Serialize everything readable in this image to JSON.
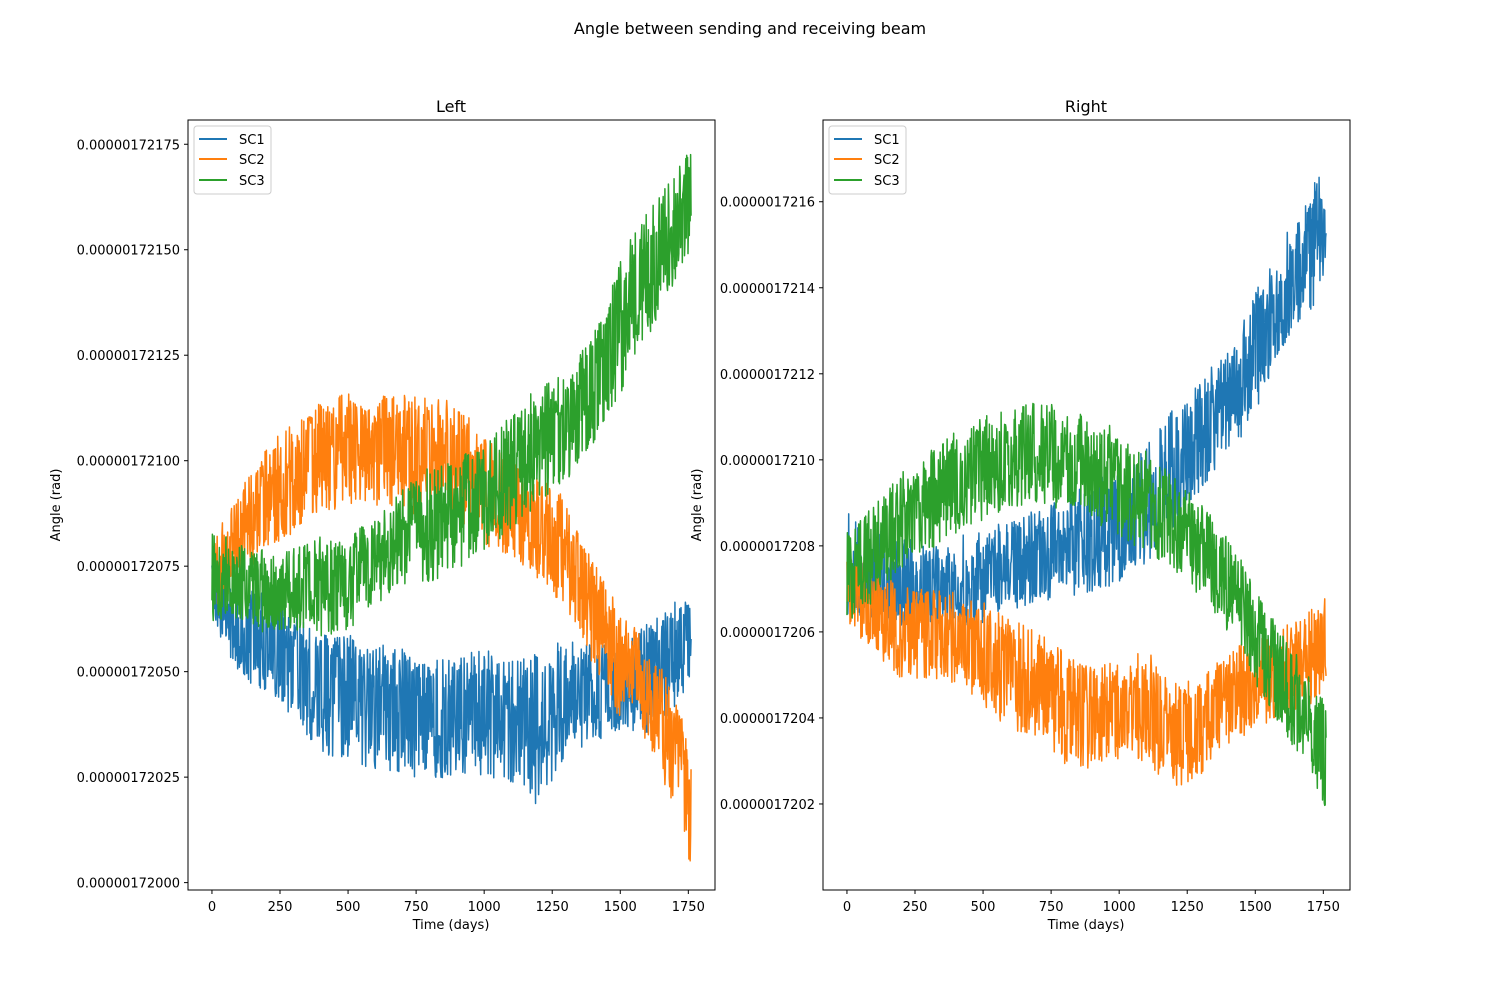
{
  "figure": {
    "title": "Angle between sending and receiving beam"
  },
  "chart_data": [
    {
      "type": "line",
      "title": "Left",
      "xlabel": "Time (days)",
      "ylabel": "Angle (rad)",
      "xlim": [
        -88,
        1848
      ],
      "ylim": [
        1.7199825e-06,
        1.7218075e-06
      ],
      "xticks": [
        0,
        250,
        500,
        750,
        1000,
        1250,
        1500,
        1750
      ],
      "yticks": [
        1.72e-06,
        1.72025e-06,
        1.7205e-06,
        1.72075e-06,
        1.721e-06,
        1.72125e-06,
        1.7215e-06,
        1.72175e-06
      ],
      "ytick_labels": [
        "0.00000172000",
        "0.00000172025",
        "0.00000172050",
        "0.00000172075",
        "0.00000172100",
        "0.00000172125",
        "0.00000172150",
        "0.00000172175"
      ],
      "grid": false,
      "legend": "upper-left",
      "series": [
        {
          "name": "SC1",
          "color": "#1f77b4",
          "x": [
            0,
            100,
            200,
            300,
            400,
            500,
            600,
            700,
            800,
            900,
            1000,
            1100,
            1200,
            1300,
            1400,
            1500,
            1600,
            1700,
            1760
          ],
          "y": [
            1.7207e-06,
            1.720605e-06,
            1.72057e-06,
            1.72053e-06,
            1.720475e-06,
            1.72046e-06,
            1.720445e-06,
            1.72042e-06,
            1.72039e-06,
            1.72038e-06,
            1.72042e-06,
            1.72039e-06,
            1.720405e-06,
            1.72045e-06,
            1.72046e-06,
            1.720445e-06,
            1.72048e-06,
            1.72054e-06,
            1.72056e-06
          ],
          "y_min": [
            1.72062e-06,
            1.720485e-06,
            1.72045e-06,
            1.720385e-06,
            1.720295e-06,
            1.720295e-06,
            1.720265e-06,
            1.720255e-06,
            1.720235e-06,
            1.720255e-06,
            1.720255e-06,
            1.720235e-06,
            1.720175e-06,
            1.720295e-06,
            1.720335e-06,
            1.72035e-06,
            1.720335e-06,
            1.72041e-06,
            1.720485e-06
          ],
          "y_max": [
            1.72077e-06,
            1.72071e-06,
            1.72069e-06,
            1.720635e-06,
            1.72059e-06,
            1.72059e-06,
            1.720575e-06,
            1.72056e-06,
            1.72053e-06,
            1.72053e-06,
            1.72056e-06,
            1.72053e-06,
            1.72056e-06,
            1.720575e-06,
            1.720575e-06,
            1.72056e-06,
            1.72062e-06,
            1.720665e-06,
            1.720665e-06
          ]
        },
        {
          "name": "SC2",
          "color": "#ff7f0e",
          "x": [
            0,
            100,
            200,
            300,
            400,
            500,
            600,
            700,
            800,
            900,
            1000,
            1100,
            1200,
            1300,
            1400,
            1500,
            1600,
            1700,
            1760
          ],
          "y": [
            1.72073e-06,
            1.72083e-06,
            1.72091e-06,
            1.72097e-06,
            1.72101e-06,
            1.72103e-06,
            1.72103e-06,
            1.72103e-06,
            1.72102e-06,
            1.72101e-06,
            1.72093e-06,
            1.72089e-06,
            1.72086e-06,
            1.72078e-06,
            1.72063e-06,
            1.72052e-06,
            1.72044e-06,
            1.72033e-06,
            1.7202e-06
          ],
          "y_min": [
            1.72062e-06,
            1.72071e-06,
            1.72079e-06,
            1.72083e-06,
            1.72088e-06,
            1.72089e-06,
            1.72089e-06,
            1.72088e-06,
            1.72086e-06,
            1.72086e-06,
            1.7208e-06,
            1.72077e-06,
            1.72072e-06,
            1.72065e-06,
            1.72051e-06,
            1.72038e-06,
            1.72032e-06,
            1.72017e-06,
            1.720035e-06
          ],
          "y_max": [
            1.72081e-06,
            1.72093e-06,
            1.72103e-06,
            1.7211e-06,
            1.72114e-06,
            1.72116e-06,
            1.72116e-06,
            1.72116e-06,
            1.72116e-06,
            1.72114e-06,
            1.72106e-06,
            1.72101e-06,
            1.72097e-06,
            1.72091e-06,
            1.72076e-06,
            1.72066e-06,
            1.72056e-06,
            1.72046e-06,
            1.7203e-06
          ]
        },
        {
          "name": "SC3",
          "color": "#2ca02c",
          "x": [
            0,
            100,
            200,
            300,
            400,
            500,
            600,
            700,
            800,
            900,
            1000,
            1100,
            1200,
            1300,
            1400,
            1500,
            1600,
            1700,
            1760
          ],
          "y": [
            1.72073e-06,
            1.72071e-06,
            1.72069e-06,
            1.7207e-06,
            1.7207e-06,
            1.72071e-06,
            1.72076e-06,
            1.72082e-06,
            1.72085e-06,
            1.72087e-06,
            1.72092e-06,
            1.72098e-06,
            1.72103e-06,
            1.72108e-06,
            1.72117e-06,
            1.72132e-06,
            1.72144e-06,
            1.72155e-06,
            1.72162e-06
          ],
          "y_min": [
            1.72062e-06,
            1.72062e-06,
            1.72059e-06,
            1.7206e-06,
            1.72058e-06,
            1.7206e-06,
            1.72065e-06,
            1.7207e-06,
            1.72071e-06,
            1.72074e-06,
            1.72079e-06,
            1.72083e-06,
            1.72089e-06,
            1.72095e-06,
            1.72104e-06,
            1.72115e-06,
            1.72129e-06,
            1.72142e-06,
            1.72149e-06
          ]
        }
      ]
    },
    {
      "type": "line",
      "title": "Right",
      "xlabel": "Time (days)",
      "ylabel": "Angle (rad)",
      "xlim": [
        -88,
        1848
      ],
      "ylim": [
        1.72e-06,
        1.72179e-06
      ],
      "xticks": [
        0,
        250,
        500,
        750,
        1000,
        1250,
        1500,
        1750
      ],
      "yticks": [
        1.7202e-06,
        1.7204e-06,
        1.7206e-06,
        1.7208e-06,
        1.721e-06,
        1.7212e-06,
        1.7214e-06,
        1.7216e-06
      ],
      "ytick_labels": [
        "0.0000017202",
        "0.0000017204",
        "0.0000017206",
        "0.0000017208",
        "0.0000017210",
        "0.0000017212",
        "0.0000017214",
        "0.0000017216"
      ],
      "grid": false,
      "legend": "upper-left",
      "series": [
        {
          "name": "SC1",
          "color": "#1f77b4",
          "x": [
            0,
            100,
            200,
            300,
            400,
            500,
            600,
            700,
            800,
            900,
            1000,
            1100,
            1200,
            1300,
            1400,
            1500,
            1600,
            1700,
            1760
          ],
          "y": [
            1.72074e-06,
            1.72072e-06,
            1.72071e-06,
            1.7207e-06,
            1.7207e-06,
            1.72071e-06,
            1.72074e-06,
            1.72076e-06,
            1.72079e-06,
            1.7208e-06,
            1.72083e-06,
            1.72088e-06,
            1.72095e-06,
            1.72104e-06,
            1.72112e-06,
            1.72125e-06,
            1.72138e-06,
            1.72149e-06,
            1.72155e-06
          ],
          "y_min": [
            1.72063e-06,
            1.72063e-06,
            1.72061e-06,
            1.72062e-06,
            1.7206e-06,
            1.72062e-06,
            1.72065e-06,
            1.72067e-06,
            1.72068e-06,
            1.72069e-06,
            1.72071e-06,
            1.72076e-06,
            1.72084e-06,
            1.72093e-06,
            1.721e-06,
            1.72111e-06,
            1.72126e-06,
            1.72133e-06,
            1.72145e-06
          ],
          "y_max": [
            1.72088e-06,
            1.72084e-06,
            1.72082e-06,
            1.72081e-06,
            1.72082e-06,
            1.72084e-06,
            1.72086e-06,
            1.72089e-06,
            1.72091e-06,
            1.72095e-06,
            1.72098e-06,
            1.72104e-06,
            1.72112e-06,
            1.72119e-06,
            1.72126e-06,
            1.72139e-06,
            1.72152e-06,
            1.72162e-06,
            1.72171e-06
          ]
        },
        {
          "name": "SC2",
          "color": "#ff7f0e",
          "x": [
            0,
            100,
            200,
            300,
            400,
            500,
            600,
            700,
            800,
            900,
            1000,
            1100,
            1200,
            1300,
            1400,
            1500,
            1600,
            1700,
            1760
          ],
          "y": [
            1.7207e-06,
            1.72063e-06,
            1.7206e-06,
            1.7206e-06,
            1.72059e-06,
            1.72055e-06,
            1.72051e-06,
            1.72046e-06,
            1.72043e-06,
            1.72041e-06,
            1.72043e-06,
            1.72043e-06,
            1.72037e-06,
            1.72038e-06,
            1.72044e-06,
            1.72047e-06,
            1.72049e-06,
            1.72054e-06,
            1.72058e-06
          ],
          "y_min": [
            1.72062e-06,
            1.72055e-06,
            1.72049e-06,
            1.72049e-06,
            1.72048e-06,
            1.72043e-06,
            1.72037e-06,
            1.72035e-06,
            1.72029e-06,
            1.72028e-06,
            1.7203e-06,
            1.7203e-06,
            1.72023e-06,
            1.72026e-06,
            1.72034e-06,
            1.72037e-06,
            1.7204e-06,
            1.72043e-06,
            1.72047e-06
          ],
          "y_max": [
            1.72082e-06,
            1.72074e-06,
            1.72071e-06,
            1.72071e-06,
            1.72069e-06,
            1.72067e-06,
            1.72063e-06,
            1.7206e-06,
            1.72056e-06,
            1.72052e-06,
            1.72054e-06,
            1.72056e-06,
            1.72048e-06,
            1.72049e-06,
            1.72056e-06,
            1.72058e-06,
            1.72061e-06,
            1.72065e-06,
            1.72068e-06
          ]
        },
        {
          "name": "SC3",
          "color": "#2ca02c",
          "x": [
            0,
            100,
            200,
            300,
            400,
            500,
            600,
            700,
            800,
            900,
            1000,
            1100,
            1200,
            1300,
            1400,
            1500,
            1600,
            1700,
            1760
          ],
          "y": [
            1.72072e-06,
            1.72078e-06,
            1.72086e-06,
            1.7209e-06,
            1.72094e-06,
            1.72098e-06,
            1.72101e-06,
            1.72102e-06,
            1.721e-06,
            1.72098e-06,
            1.72094e-06,
            1.7209e-06,
            1.72086e-06,
            1.72079e-06,
            1.72072e-06,
            1.7206e-06,
            1.72048e-06,
            1.72039e-06,
            1.72031e-06
          ],
          "y_min": [
            1.72062e-06,
            1.72067e-06,
            1.72074e-06,
            1.72078e-06,
            1.72082e-06,
            1.72086e-06,
            1.72089e-06,
            1.7209e-06,
            1.72088e-06,
            1.72086e-06,
            1.72082e-06,
            1.72078e-06,
            1.72074e-06,
            1.72068e-06,
            1.7206e-06,
            1.72048e-06,
            1.72037e-06,
            1.72028e-06,
            1.72017e-06
          ],
          "y_max": [
            1.72083e-06,
            1.7209e-06,
            1.72097e-06,
            1.72102e-06,
            1.72107e-06,
            1.7211e-06,
            1.72112e-06,
            1.72114e-06,
            1.72112e-06,
            1.7211e-06,
            1.72107e-06,
            1.72102e-06,
            1.72096e-06,
            1.7209e-06,
            1.72082e-06,
            1.72071e-06,
            1.7206e-06,
            1.7205e-06,
            1.72043e-06
          ]
        }
      ]
    }
  ]
}
